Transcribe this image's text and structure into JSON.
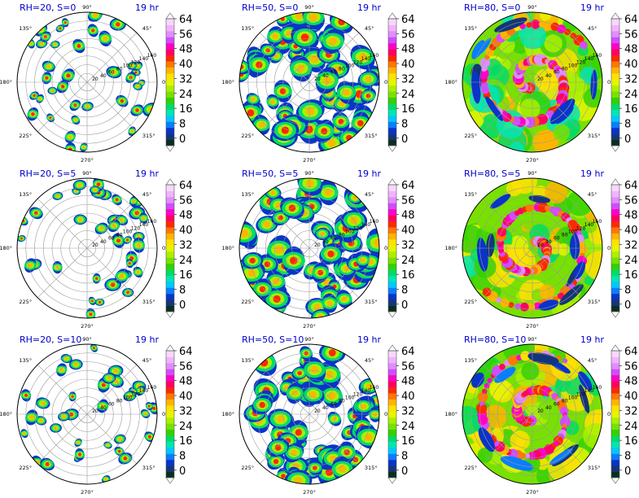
{
  "figure": {
    "time_label": "19 hr",
    "colorbar_ticks": [
      "0",
      "8",
      "16",
      "24",
      "32",
      "40",
      "48",
      "56",
      "64"
    ],
    "colorbar_colors": [
      "#0a2f1a",
      "#14357a",
      "#0a34c8",
      "#0a7dff",
      "#00c8ff",
      "#00e6b4",
      "#00dc64",
      "#32d200",
      "#78e100",
      "#aaf000",
      "#e6f500",
      "#ffe100",
      "#ffb400",
      "#ff7800",
      "#ff2800",
      "#ff0064",
      "#ff00c8",
      "#d24bff",
      "#e18cff",
      "#f0b4ff",
      "#f8d7ff"
    ],
    "angle_labels": [
      "0°",
      "45°",
      "90°",
      "135°",
      "180°",
      "225°",
      "270°",
      "315°"
    ],
    "radial_labels": [
      "20",
      "40",
      "60",
      "80",
      "100",
      "120",
      "140",
      "160"
    ]
  },
  "chart_data": [
    {
      "type": "heatmap",
      "title": "RH=20, S=0",
      "projection": "polar",
      "rlim": [
        0,
        160
      ],
      "clim": [
        0,
        64
      ],
      "coverage": "sparse"
    },
    {
      "type": "heatmap",
      "title": "RH=50, S=0",
      "projection": "polar",
      "rlim": [
        0,
        160
      ],
      "clim": [
        0,
        64
      ],
      "coverage": "medium"
    },
    {
      "type": "heatmap",
      "title": "RH=80, S=0",
      "projection": "polar",
      "rlim": [
        0,
        160
      ],
      "clim": [
        0,
        64
      ],
      "coverage": "full"
    },
    {
      "type": "heatmap",
      "title": "RH=20, S=5",
      "projection": "polar",
      "rlim": [
        0,
        160
      ],
      "clim": [
        0,
        64
      ],
      "coverage": "sparse"
    },
    {
      "type": "heatmap",
      "title": "RH=50, S=5",
      "projection": "polar",
      "rlim": [
        0,
        160
      ],
      "clim": [
        0,
        64
      ],
      "coverage": "medium"
    },
    {
      "type": "heatmap",
      "title": "RH=80, S=5",
      "projection": "polar",
      "rlim": [
        0,
        160
      ],
      "clim": [
        0,
        64
      ],
      "coverage": "full"
    },
    {
      "type": "heatmap",
      "title": "RH=20, S=10",
      "projection": "polar",
      "rlim": [
        0,
        160
      ],
      "clim": [
        0,
        64
      ],
      "coverage": "sparse"
    },
    {
      "type": "heatmap",
      "title": "RH=50, S=10",
      "projection": "polar",
      "rlim": [
        0,
        160
      ],
      "clim": [
        0,
        64
      ],
      "coverage": "medium"
    },
    {
      "type": "heatmap",
      "title": "RH=80, S=10",
      "projection": "polar",
      "rlim": [
        0,
        160
      ],
      "clim": [
        0,
        64
      ],
      "coverage": "full"
    }
  ]
}
